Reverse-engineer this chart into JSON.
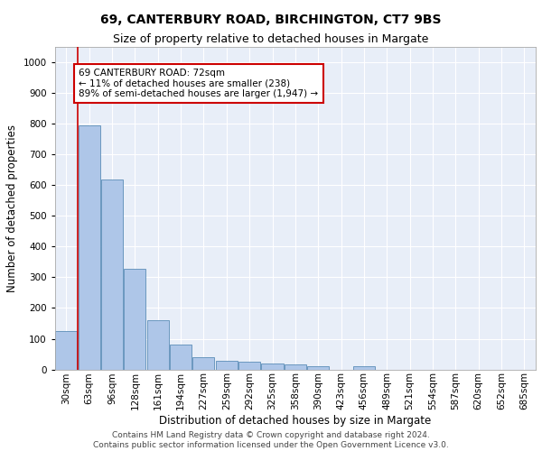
{
  "title": "69, CANTERBURY ROAD, BIRCHINGTON, CT7 9BS",
  "subtitle": "Size of property relative to detached houses in Margate",
  "xlabel": "Distribution of detached houses by size in Margate",
  "ylabel": "Number of detached properties",
  "bar_color": "#aec6e8",
  "bar_edge_color": "#5b8db8",
  "background_color": "#e8eef8",
  "grid_color": "#ffffff",
  "annotation_text": "69 CANTERBURY ROAD: 72sqm\n← 11% of detached houses are smaller (238)\n89% of semi-detached houses are larger (1,947) →",
  "annotation_box_color": "#ffffff",
  "annotation_box_edge_color": "#cc0000",
  "vline_color": "#cc0000",
  "vline_x_idx": 1,
  "categories": [
    "30sqm",
    "63sqm",
    "96sqm",
    "128sqm",
    "161sqm",
    "194sqm",
    "227sqm",
    "259sqm",
    "292sqm",
    "325sqm",
    "358sqm",
    "390sqm",
    "423sqm",
    "456sqm",
    "489sqm",
    "521sqm",
    "554sqm",
    "587sqm",
    "620sqm",
    "652sqm",
    "685sqm"
  ],
  "values": [
    125,
    795,
    617,
    328,
    161,
    82,
    40,
    28,
    25,
    18,
    15,
    10,
    0,
    10,
    0,
    0,
    0,
    0,
    0,
    0,
    0
  ],
  "ylim": [
    0,
    1050
  ],
  "yticks": [
    0,
    100,
    200,
    300,
    400,
    500,
    600,
    700,
    800,
    900,
    1000
  ],
  "footer_text": "Contains HM Land Registry data © Crown copyright and database right 2024.\nContains public sector information licensed under the Open Government Licence v3.0.",
  "title_fontsize": 10,
  "subtitle_fontsize": 9,
  "xlabel_fontsize": 8.5,
  "ylabel_fontsize": 8.5,
  "tick_fontsize": 7.5,
  "footer_fontsize": 6.5,
  "annot_fontsize": 7.5
}
